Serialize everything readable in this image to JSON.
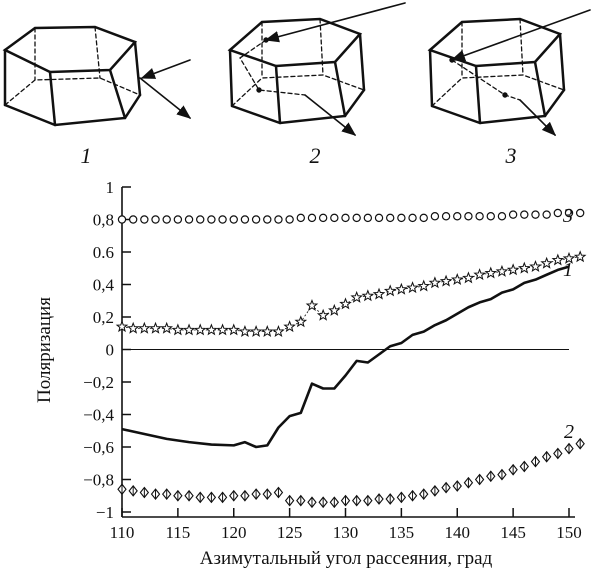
{
  "panel_labels": [
    "1",
    "2",
    "3"
  ],
  "chart_data": {
    "type": "scatter",
    "title": "",
    "xlabel": "Азимутальный угол рассеяния, град",
    "ylabel": "Поляризация",
    "xlim": [
      110,
      150
    ],
    "ylim": [
      -1,
      1
    ],
    "xticks": [
      "110",
      "115",
      "120",
      "125",
      "130",
      "135",
      "140",
      "145",
      "150"
    ],
    "yticks": [
      "1",
      "0,8",
      "0.6",
      "0,4",
      "0,2",
      "0",
      "−0,2",
      "−0,4",
      "−0,6",
      "−0,8",
      "−1"
    ],
    "grid": false,
    "zero_line": true,
    "curve_labels": [
      "3",
      "1",
      "2"
    ],
    "series": [
      {
        "marker": "circle",
        "x": [
          110,
          111,
          112,
          113,
          114,
          115,
          116,
          117,
          118,
          119,
          120,
          121,
          122,
          123,
          124,
          125,
          126,
          127,
          128,
          129,
          130,
          131,
          132,
          133,
          134,
          135,
          136,
          137,
          138,
          139,
          140,
          141,
          142,
          143,
          144,
          145,
          146,
          147,
          148,
          149,
          150,
          151
        ],
        "y": [
          0.8,
          0.8,
          0.8,
          0.8,
          0.8,
          0.8,
          0.8,
          0.8,
          0.8,
          0.8,
          0.8,
          0.8,
          0.8,
          0.8,
          0.8,
          0.8,
          0.81,
          0.81,
          0.81,
          0.81,
          0.81,
          0.81,
          0.81,
          0.81,
          0.81,
          0.81,
          0.81,
          0.81,
          0.82,
          0.82,
          0.82,
          0.82,
          0.82,
          0.82,
          0.82,
          0.83,
          0.83,
          0.83,
          0.83,
          0.84,
          0.84,
          0.84
        ]
      },
      {
        "marker": "star",
        "x": [
          110,
          111,
          112,
          113,
          114,
          115,
          116,
          117,
          118,
          119,
          120,
          121,
          122,
          123,
          124,
          125,
          126,
          127,
          128,
          129,
          130,
          131,
          132,
          133,
          134,
          135,
          136,
          137,
          138,
          139,
          140,
          141,
          142,
          143,
          144,
          145,
          146,
          147,
          148,
          149,
          150,
          151
        ],
        "y": [
          0.14,
          0.13,
          0.13,
          0.13,
          0.13,
          0.12,
          0.12,
          0.12,
          0.12,
          0.12,
          0.12,
          0.11,
          0.11,
          0.11,
          0.11,
          0.14,
          0.17,
          0.27,
          0.21,
          0.24,
          0.28,
          0.32,
          0.33,
          0.34,
          0.36,
          0.37,
          0.38,
          0.39,
          0.41,
          0.42,
          0.43,
          0.44,
          0.46,
          0.47,
          0.48,
          0.49,
          0.5,
          0.51,
          0.53,
          0.55,
          0.56,
          0.57
        ]
      },
      {
        "marker": "line",
        "x": [
          110,
          112,
          114,
          116,
          118,
          120,
          121,
          122,
          123,
          124,
          125,
          126,
          127,
          128,
          129,
          130,
          131,
          132,
          133,
          134,
          135,
          136,
          137,
          138,
          139,
          140,
          141,
          142,
          143,
          144,
          145,
          146,
          147,
          148,
          149,
          150
        ],
        "y": [
          -0.49,
          -0.52,
          -0.55,
          -0.57,
          -0.585,
          -0.59,
          -0.57,
          -0.6,
          -0.59,
          -0.48,
          -0.41,
          -0.39,
          -0.21,
          -0.24,
          -0.24,
          -0.16,
          -0.07,
          -0.08,
          -0.03,
          0.02,
          0.04,
          0.09,
          0.11,
          0.15,
          0.18,
          0.22,
          0.26,
          0.29,
          0.31,
          0.35,
          0.37,
          0.41,
          0.43,
          0.46,
          0.49,
          0.51
        ]
      },
      {
        "marker": "diamond",
        "x": [
          110,
          111,
          112,
          113,
          114,
          115,
          116,
          117,
          118,
          119,
          120,
          121,
          122,
          123,
          124,
          125,
          126,
          127,
          128,
          129,
          130,
          131,
          132,
          133,
          134,
          135,
          136,
          137,
          138,
          139,
          140,
          141,
          142,
          143,
          144,
          145,
          146,
          147,
          148,
          149,
          150,
          151
        ],
        "y": [
          -0.86,
          -0.87,
          -0.88,
          -0.89,
          -0.89,
          -0.9,
          -0.9,
          -0.91,
          -0.91,
          -0.91,
          -0.9,
          -0.9,
          -0.89,
          -0.89,
          -0.88,
          -0.93,
          -0.93,
          -0.94,
          -0.94,
          -0.94,
          -0.93,
          -0.93,
          -0.93,
          -0.92,
          -0.92,
          -0.91,
          -0.9,
          -0.89,
          -0.87,
          -0.85,
          -0.84,
          -0.82,
          -0.8,
          -0.78,
          -0.77,
          -0.74,
          -0.72,
          -0.69,
          -0.66,
          -0.64,
          -0.61,
          -0.58
        ]
      }
    ]
  }
}
